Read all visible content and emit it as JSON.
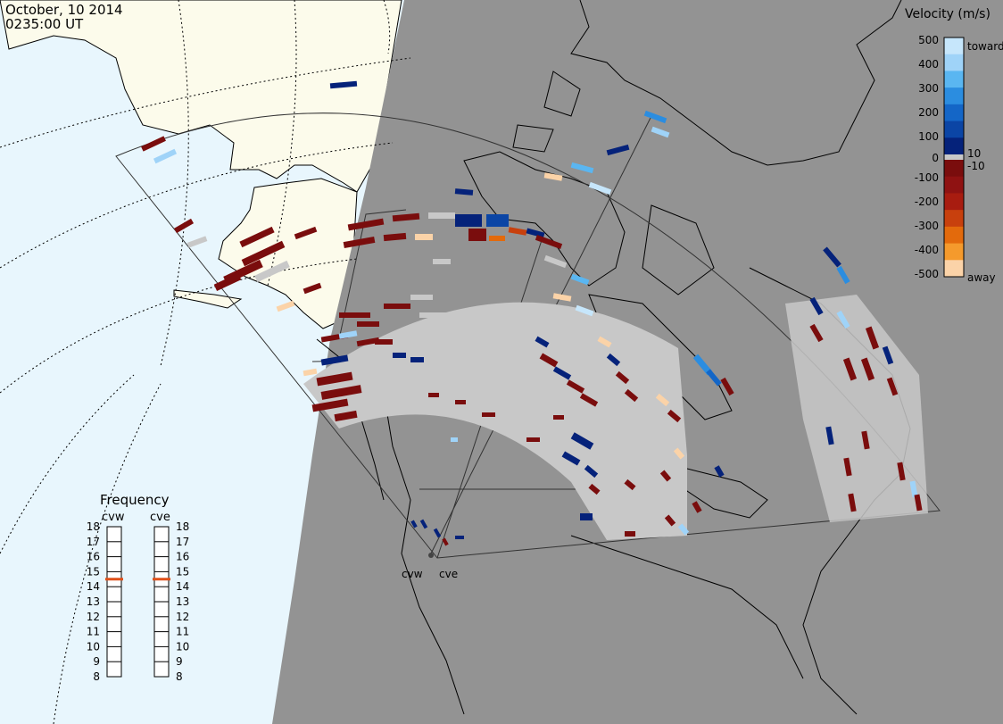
{
  "header": {
    "date": "October, 10 2014",
    "time": "0235:00 UT"
  },
  "velocity_legend": {
    "title": "Velocity (m/s)",
    "ticks_positive": [
      "500",
      "400",
      "300",
      "200",
      "100",
      "10"
    ],
    "zero": "0",
    "ticks_negative": [
      "-10",
      "-100",
      "-200",
      "-300",
      "-400",
      "-500"
    ],
    "toward_label": "toward",
    "away_label": "away",
    "toward_colors": [
      "#c6e6fb",
      "#9fd3f8",
      "#5ab6f1",
      "#2b8de0",
      "#1466c7",
      "#0b45a5",
      "#05227a"
    ],
    "away_colors": [
      "#7a0d0d",
      "#8f1212",
      "#a81c10",
      "#c8400d",
      "#e36a0c",
      "#f59a2c",
      "#fbd3a8"
    ]
  },
  "frequency": {
    "title": "Frequency",
    "radar_left": "cvw",
    "radar_right": "cve",
    "levels": [
      "18",
      "17",
      "16",
      "15",
      "14",
      "13",
      "12",
      "11",
      "10",
      "9",
      "8"
    ],
    "left_value": "15",
    "right_value": "15",
    "marker_color": "#e0501a"
  },
  "radars": {
    "west_label": "cvw",
    "east_label": "cve"
  },
  "colors": {
    "night": "#939393",
    "ocean": "#e8f6fd",
    "land_day": "#fcfbeb",
    "groundscatter": "#c8c8c8"
  }
}
